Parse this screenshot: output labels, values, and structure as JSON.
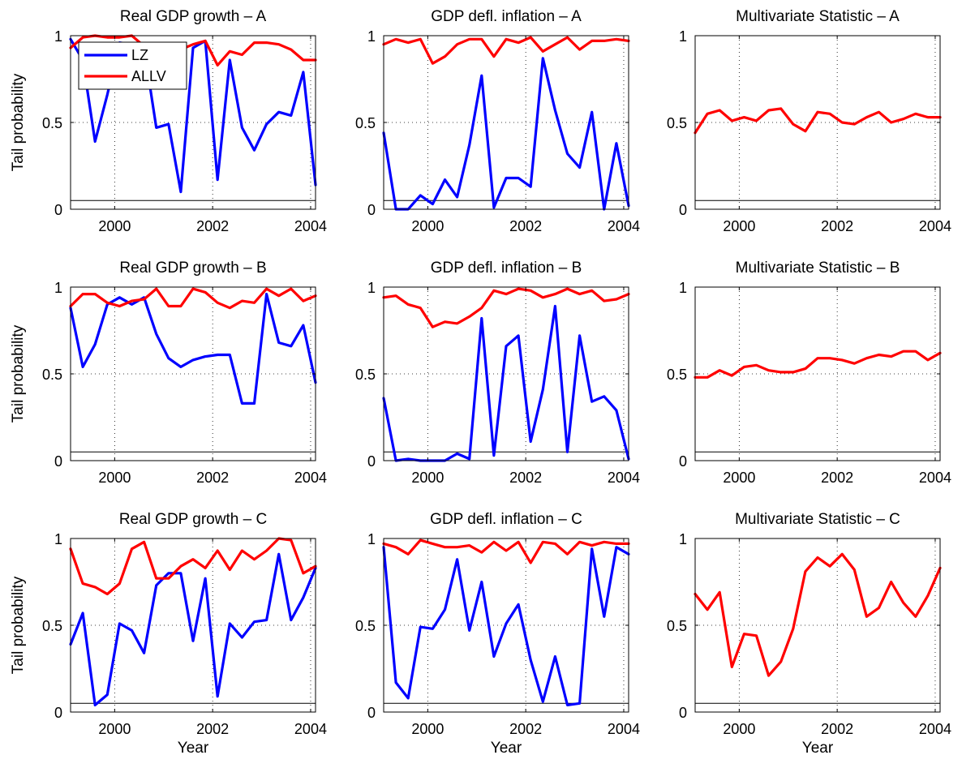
{
  "colors": {
    "LZ": "#0000ff",
    "ALLV": "#ff0000",
    "reference": "#000000"
  },
  "labels": {
    "ylabel": "Tail probability",
    "xlabel": "Year"
  },
  "legend": {
    "location": "top-left of first panel",
    "entries": [
      "LZ",
      "ALLV"
    ]
  },
  "chart_data": [
    {
      "type": "line",
      "title": "Real GDP growth – A",
      "xlim": [
        1999.1,
        2004.1
      ],
      "ylim": [
        0,
        1
      ],
      "xticks": [
        2000,
        2002,
        2004
      ],
      "yticks": [
        0,
        0.5,
        1
      ],
      "grid": true,
      "reference_line": 0.05,
      "x": [
        1999.1,
        1999.35,
        1999.6,
        1999.85,
        2000.1,
        2000.35,
        2000.6,
        2000.85,
        2001.1,
        2001.35,
        2001.6,
        2001.85,
        2002.1,
        2002.35,
        2002.6,
        2002.85,
        2003.1,
        2003.35,
        2003.6,
        2003.85,
        2004.1
      ],
      "series": [
        {
          "name": "LZ",
          "values": [
            0.98,
            0.86,
            0.39,
            0.66,
            0.96,
            0.95,
            0.93,
            0.47,
            0.49,
            0.1,
            0.93,
            0.97,
            0.17,
            0.86,
            0.47,
            0.34,
            0.49,
            0.56,
            0.54,
            0.79,
            0.14
          ]
        },
        {
          "name": "ALLV",
          "values": [
            0.93,
            0.99,
            1.0,
            0.99,
            0.99,
            1.0,
            0.94,
            0.93,
            0.94,
            0.92,
            0.95,
            0.97,
            0.83,
            0.91,
            0.89,
            0.96,
            0.96,
            0.95,
            0.92,
            0.86,
            0.86
          ]
        }
      ]
    },
    {
      "type": "line",
      "title": "GDP defl. inflation – A",
      "xlim": [
        1999.1,
        2004.1
      ],
      "ylim": [
        0,
        1
      ],
      "xticks": [
        2000,
        2002,
        2004
      ],
      "yticks": [
        0,
        0.5,
        1
      ],
      "grid": true,
      "reference_line": 0.05,
      "x": [
        1999.1,
        1999.35,
        1999.6,
        1999.85,
        2000.1,
        2000.35,
        2000.6,
        2000.85,
        2001.1,
        2001.35,
        2001.6,
        2001.85,
        2002.1,
        2002.35,
        2002.6,
        2002.85,
        2003.1,
        2003.35,
        2003.6,
        2003.85,
        2004.1
      ],
      "series": [
        {
          "name": "LZ",
          "values": [
            0.44,
            0.0,
            0.0,
            0.08,
            0.03,
            0.17,
            0.07,
            0.37,
            0.77,
            0.01,
            0.18,
            0.18,
            0.13,
            0.87,
            0.57,
            0.32,
            0.24,
            0.56,
            0.0,
            0.38,
            0.02
          ]
        },
        {
          "name": "ALLV",
          "values": [
            0.95,
            0.98,
            0.96,
            0.98,
            0.84,
            0.88,
            0.95,
            0.98,
            0.98,
            0.88,
            0.98,
            0.96,
            0.99,
            0.91,
            0.95,
            0.99,
            0.92,
            0.97,
            0.97,
            0.98,
            0.97
          ]
        }
      ]
    },
    {
      "type": "line",
      "title": "Multivariate Statistic – A",
      "xlim": [
        1999.1,
        2004.1
      ],
      "ylim": [
        0,
        1
      ],
      "xticks": [
        2000,
        2002,
        2004
      ],
      "yticks": [
        0,
        0.5,
        1
      ],
      "grid": true,
      "reference_line": 0.05,
      "x": [
        1999.1,
        1999.35,
        1999.6,
        1999.85,
        2000.1,
        2000.35,
        2000.6,
        2000.85,
        2001.1,
        2001.35,
        2001.6,
        2001.85,
        2002.1,
        2002.35,
        2002.6,
        2002.85,
        2003.1,
        2003.35,
        2003.6,
        2003.85,
        2004.1
      ],
      "series": [
        {
          "name": "ALLV",
          "values": [
            0.44,
            0.55,
            0.57,
            0.51,
            0.53,
            0.51,
            0.57,
            0.58,
            0.49,
            0.45,
            0.56,
            0.55,
            0.5,
            0.49,
            0.53,
            0.56,
            0.5,
            0.52,
            0.55,
            0.53,
            0.53
          ]
        }
      ]
    },
    {
      "type": "line",
      "title": "Real GDP growth – B",
      "xlim": [
        1999.1,
        2004.1
      ],
      "ylim": [
        0,
        1
      ],
      "xticks": [
        2000,
        2002,
        2004
      ],
      "yticks": [
        0,
        0.5,
        1
      ],
      "grid": true,
      "reference_line": 0.05,
      "x": [
        1999.1,
        1999.35,
        1999.6,
        1999.85,
        2000.1,
        2000.35,
        2000.6,
        2000.85,
        2001.1,
        2001.35,
        2001.6,
        2001.85,
        2002.1,
        2002.35,
        2002.6,
        2002.85,
        2003.1,
        2003.35,
        2003.6,
        2003.85,
        2004.1
      ],
      "series": [
        {
          "name": "LZ",
          "values": [
            0.88,
            0.54,
            0.67,
            0.9,
            0.94,
            0.9,
            0.94,
            0.73,
            0.59,
            0.54,
            0.58,
            0.6,
            0.61,
            0.61,
            0.33,
            0.33,
            0.96,
            0.68,
            0.66,
            0.78,
            0.45
          ]
        },
        {
          "name": "ALLV",
          "values": [
            0.89,
            0.96,
            0.96,
            0.91,
            0.89,
            0.92,
            0.93,
            0.99,
            0.89,
            0.89,
            0.99,
            0.97,
            0.91,
            0.88,
            0.92,
            0.91,
            0.99,
            0.95,
            0.99,
            0.92,
            0.95
          ]
        }
      ]
    },
    {
      "type": "line",
      "title": "GDP defl. inflation – B",
      "xlim": [
        1999.1,
        2004.1
      ],
      "ylim": [
        0,
        1
      ],
      "xticks": [
        2000,
        2002,
        2004
      ],
      "yticks": [
        0,
        0.5,
        1
      ],
      "grid": true,
      "reference_line": 0.05,
      "x": [
        1999.1,
        1999.35,
        1999.6,
        1999.85,
        2000.1,
        2000.35,
        2000.6,
        2000.85,
        2001.1,
        2001.35,
        2001.6,
        2001.85,
        2002.1,
        2002.35,
        2002.6,
        2002.85,
        2003.1,
        2003.35,
        2003.6,
        2003.85,
        2004.1
      ],
      "series": [
        {
          "name": "LZ",
          "values": [
            0.36,
            0.0,
            0.01,
            0.0,
            0.0,
            0.0,
            0.04,
            0.01,
            0.82,
            0.03,
            0.66,
            0.72,
            0.11,
            0.41,
            0.89,
            0.05,
            0.72,
            0.34,
            0.37,
            0.29,
            0.01
          ]
        },
        {
          "name": "ALLV",
          "values": [
            0.94,
            0.95,
            0.9,
            0.88,
            0.77,
            0.8,
            0.79,
            0.83,
            0.88,
            0.98,
            0.96,
            0.99,
            0.98,
            0.94,
            0.96,
            0.99,
            0.96,
            0.98,
            0.92,
            0.93,
            0.96
          ]
        }
      ]
    },
    {
      "type": "line",
      "title": "Multivariate Statistic – B",
      "xlim": [
        1999.1,
        2004.1
      ],
      "ylim": [
        0,
        1
      ],
      "xticks": [
        2000,
        2002,
        2004
      ],
      "yticks": [
        0,
        0.5,
        1
      ],
      "grid": true,
      "reference_line": 0.05,
      "x": [
        1999.1,
        1999.35,
        1999.6,
        1999.85,
        2000.1,
        2000.35,
        2000.6,
        2000.85,
        2001.1,
        2001.35,
        2001.6,
        2001.85,
        2002.1,
        2002.35,
        2002.6,
        2002.85,
        2003.1,
        2003.35,
        2003.6,
        2003.85,
        2004.1
      ],
      "series": [
        {
          "name": "ALLV",
          "values": [
            0.48,
            0.48,
            0.52,
            0.49,
            0.54,
            0.55,
            0.52,
            0.51,
            0.51,
            0.53,
            0.59,
            0.59,
            0.58,
            0.56,
            0.59,
            0.61,
            0.6,
            0.63,
            0.63,
            0.58,
            0.62
          ]
        }
      ]
    },
    {
      "type": "line",
      "title": "Real GDP growth – C",
      "xlim": [
        1999.1,
        2004.1
      ],
      "ylim": [
        0,
        1
      ],
      "xticks": [
        2000,
        2002,
        2004
      ],
      "yticks": [
        0,
        0.5,
        1
      ],
      "grid": true,
      "reference_line": 0.05,
      "x": [
        1999.1,
        1999.35,
        1999.6,
        1999.85,
        2000.1,
        2000.35,
        2000.6,
        2000.85,
        2001.1,
        2001.35,
        2001.6,
        2001.85,
        2002.1,
        2002.35,
        2002.6,
        2002.85,
        2003.1,
        2003.35,
        2003.6,
        2003.85,
        2004.1
      ],
      "series": [
        {
          "name": "LZ",
          "values": [
            0.39,
            0.57,
            0.04,
            0.1,
            0.51,
            0.47,
            0.34,
            0.73,
            0.8,
            0.8,
            0.41,
            0.77,
            0.09,
            0.51,
            0.43,
            0.52,
            0.53,
            0.91,
            0.53,
            0.66,
            0.83
          ]
        },
        {
          "name": "ALLV",
          "values": [
            0.94,
            0.74,
            0.72,
            0.68,
            0.74,
            0.94,
            0.98,
            0.77,
            0.77,
            0.84,
            0.88,
            0.83,
            0.93,
            0.82,
            0.93,
            0.88,
            0.93,
            1.0,
            0.99,
            0.8,
            0.84
          ]
        }
      ]
    },
    {
      "type": "line",
      "title": "GDP defl. inflation – C",
      "xlim": [
        1999.1,
        2004.1
      ],
      "ylim": [
        0,
        1
      ],
      "xticks": [
        2000,
        2002,
        2004
      ],
      "yticks": [
        0,
        0.5,
        1
      ],
      "grid": true,
      "reference_line": 0.05,
      "x": [
        1999.1,
        1999.35,
        1999.6,
        1999.85,
        2000.1,
        2000.35,
        2000.6,
        2000.85,
        2001.1,
        2001.35,
        2001.6,
        2001.85,
        2002.1,
        2002.35,
        2002.6,
        2002.85,
        2003.1,
        2003.35,
        2003.6,
        2003.85,
        2004.1
      ],
      "series": [
        {
          "name": "LZ",
          "values": [
            0.95,
            0.17,
            0.08,
            0.49,
            0.48,
            0.59,
            0.88,
            0.47,
            0.75,
            0.32,
            0.51,
            0.62,
            0.3,
            0.06,
            0.32,
            0.04,
            0.05,
            0.94,
            0.55,
            0.95,
            0.91
          ]
        },
        {
          "name": "ALLV",
          "values": [
            0.97,
            0.95,
            0.91,
            0.99,
            0.97,
            0.95,
            0.95,
            0.96,
            0.92,
            0.98,
            0.93,
            0.98,
            0.86,
            0.98,
            0.97,
            0.91,
            0.98,
            0.96,
            0.98,
            0.97,
            0.97
          ]
        }
      ]
    },
    {
      "type": "line",
      "title": "Multivariate Statistic – C",
      "xlim": [
        1999.1,
        2004.1
      ],
      "ylim": [
        0,
        1
      ],
      "xticks": [
        2000,
        2002,
        2004
      ],
      "yticks": [
        0,
        0.5,
        1
      ],
      "grid": true,
      "reference_line": 0.05,
      "x": [
        1999.1,
        1999.35,
        1999.6,
        1999.85,
        2000.1,
        2000.35,
        2000.6,
        2000.85,
        2001.1,
        2001.35,
        2001.6,
        2001.85,
        2002.1,
        2002.35,
        2002.6,
        2002.85,
        2003.1,
        2003.35,
        2003.6,
        2003.85,
        2004.1
      ],
      "series": [
        {
          "name": "ALLV",
          "values": [
            0.68,
            0.59,
            0.69,
            0.26,
            0.45,
            0.44,
            0.21,
            0.29,
            0.48,
            0.81,
            0.89,
            0.84,
            0.91,
            0.82,
            0.55,
            0.6,
            0.75,
            0.63,
            0.55,
            0.67,
            0.83
          ]
        }
      ]
    }
  ]
}
